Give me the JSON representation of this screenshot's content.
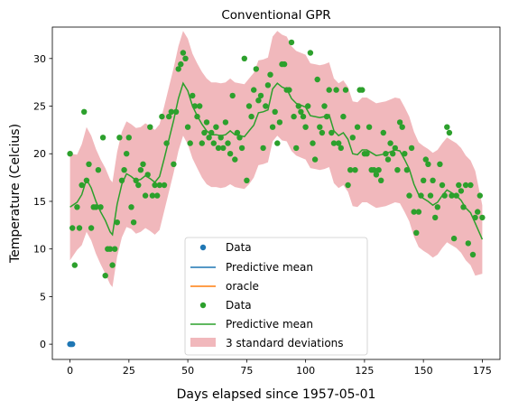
{
  "chart_data": {
    "type": "scatter",
    "title": "Conventional GPR",
    "xlabel": "Days elapsed since 1957-05-01",
    "ylabel": "Temperature (Celcius)",
    "xlim": [
      -7.5,
      182.5
    ],
    "ylim": [
      -1.6,
      33.3
    ],
    "xticks": [
      0,
      25,
      50,
      75,
      100,
      125,
      150,
      175
    ],
    "yticks": [
      0,
      5,
      10,
      15,
      20,
      25,
      30
    ],
    "grid": false,
    "legend_position": "lower-center",
    "legend": [
      {
        "label": "Data",
        "kind": "marker",
        "color": "#1f77b4"
      },
      {
        "label": "Predictive mean",
        "kind": "line",
        "color": "#1f77b4"
      },
      {
        "label": "oracle",
        "kind": "line",
        "color": "#ff7f0e"
      },
      {
        "label": "Data",
        "kind": "marker",
        "color": "#2ca02c"
      },
      {
        "label": "Predictive mean",
        "kind": "line",
        "color": "#2ca02c"
      },
      {
        "label": "3 standard deviations",
        "kind": "patch",
        "color": "#e47c80"
      }
    ],
    "colors": {
      "data_blue": "#1f77b4",
      "data_green": "#2ca02c",
      "mean_green": "#2ca02c",
      "band": "#eb9aa0"
    },
    "series": [
      {
        "name": "Data",
        "kind": "scatter",
        "color": "#1f77b4",
        "points": [
          [
            0,
            0
          ],
          [
            0.5,
            0
          ],
          [
            1,
            0
          ]
        ]
      },
      {
        "name": "Data",
        "kind": "scatter",
        "color": "#2ca02c",
        "points": [
          [
            0,
            20.0
          ],
          [
            1,
            12.2
          ],
          [
            2,
            8.3
          ],
          [
            3,
            14.4
          ],
          [
            4,
            12.2
          ],
          [
            5,
            16.7
          ],
          [
            6,
            24.4
          ],
          [
            7,
            17.2
          ],
          [
            8,
            18.9
          ],
          [
            9,
            12.2
          ],
          [
            10,
            14.4
          ],
          [
            11,
            14.4
          ],
          [
            12,
            18.3
          ],
          [
            13,
            14.4
          ],
          [
            14,
            21.7
          ],
          [
            15,
            7.2
          ],
          [
            16,
            10.0
          ],
          [
            17,
            10.0
          ],
          [
            18,
            8.3
          ],
          [
            19,
            10.0
          ],
          [
            20,
            12.8
          ],
          [
            21,
            21.7
          ],
          [
            22,
            17.2
          ],
          [
            23,
            18.3
          ],
          [
            24,
            20.0
          ],
          [
            25,
            21.7
          ],
          [
            26,
            14.4
          ],
          [
            27,
            12.8
          ],
          [
            28,
            17.2
          ],
          [
            29,
            16.7
          ],
          [
            30,
            18.3
          ],
          [
            31,
            18.9
          ],
          [
            32,
            15.6
          ],
          [
            33,
            17.8
          ],
          [
            34,
            22.8
          ],
          [
            35,
            15.6
          ],
          [
            36,
            16.7
          ],
          [
            37,
            15.6
          ],
          [
            38,
            16.7
          ],
          [
            39,
            23.9
          ],
          [
            40,
            16.7
          ],
          [
            41,
            21.1
          ],
          [
            42,
            23.9
          ],
          [
            43,
            24.4
          ],
          [
            44,
            18.9
          ],
          [
            45,
            24.4
          ],
          [
            46,
            28.9
          ],
          [
            47,
            29.4
          ],
          [
            48,
            30.6
          ],
          [
            49,
            30.0
          ],
          [
            50,
            22.8
          ],
          [
            51,
            21.1
          ],
          [
            52,
            26.1
          ],
          [
            53,
            25.0
          ],
          [
            54,
            23.9
          ],
          [
            55,
            25.0
          ],
          [
            56,
            21.1
          ],
          [
            57,
            22.2
          ],
          [
            58,
            23.3
          ],
          [
            59,
            21.7
          ],
          [
            60,
            22.2
          ],
          [
            61,
            21.1
          ],
          [
            62,
            22.8
          ],
          [
            63,
            20.6
          ],
          [
            64,
            21.7
          ],
          [
            65,
            20.6
          ],
          [
            66,
            23.3
          ],
          [
            67,
            21.1
          ],
          [
            68,
            20.0
          ],
          [
            69,
            26.1
          ],
          [
            70,
            19.4
          ],
          [
            71,
            22.2
          ],
          [
            72,
            21.7
          ],
          [
            73,
            20.6
          ],
          [
            74,
            30.0
          ],
          [
            75,
            17.2
          ],
          [
            76,
            25.0
          ],
          [
            77,
            23.9
          ],
          [
            78,
            26.7
          ],
          [
            79,
            28.9
          ],
          [
            80,
            25.6
          ],
          [
            81,
            26.1
          ],
          [
            82,
            20.6
          ],
          [
            83,
            25.0
          ],
          [
            84,
            27.2
          ],
          [
            85,
            28.3
          ],
          [
            86,
            22.8
          ],
          [
            87,
            24.4
          ],
          [
            88,
            21.1
          ],
          [
            89,
            23.3
          ],
          [
            90,
            29.4
          ],
          [
            91,
            29.4
          ],
          [
            92,
            26.7
          ],
          [
            93,
            26.7
          ],
          [
            94,
            31.7
          ],
          [
            95,
            23.9
          ],
          [
            96,
            20.6
          ],
          [
            97,
            25.0
          ],
          [
            98,
            24.4
          ],
          [
            99,
            23.9
          ],
          [
            100,
            22.8
          ],
          [
            101,
            25.0
          ],
          [
            102,
            30.6
          ],
          [
            103,
            21.1
          ],
          [
            104,
            19.4
          ],
          [
            105,
            27.8
          ],
          [
            106,
            22.8
          ],
          [
            107,
            22.2
          ],
          [
            108,
            25.0
          ],
          [
            109,
            23.9
          ],
          [
            110,
            26.7
          ],
          [
            111,
            22.2
          ],
          [
            112,
            21.1
          ],
          [
            113,
            26.7
          ],
          [
            114,
            21.1
          ],
          [
            115,
            20.6
          ],
          [
            116,
            23.9
          ],
          [
            117,
            26.7
          ],
          [
            118,
            16.7
          ],
          [
            119,
            18.3
          ],
          [
            120,
            21.7
          ],
          [
            121,
            18.3
          ],
          [
            122,
            22.8
          ],
          [
            123,
            26.7
          ],
          [
            124,
            26.7
          ],
          [
            125,
            20.0
          ],
          [
            126,
            20.0
          ],
          [
            127,
            22.8
          ],
          [
            128,
            18.3
          ],
          [
            129,
            18.3
          ],
          [
            130,
            17.8
          ],
          [
            131,
            18.3
          ],
          [
            132,
            17.2
          ],
          [
            133,
            22.2
          ],
          [
            134,
            20.0
          ],
          [
            135,
            19.4
          ],
          [
            136,
            21.1
          ],
          [
            137,
            20.0
          ],
          [
            138,
            20.6
          ],
          [
            139,
            18.3
          ],
          [
            140,
            23.3
          ],
          [
            141,
            22.8
          ],
          [
            142,
            20.0
          ],
          [
            143,
            18.3
          ],
          [
            144,
            15.6
          ],
          [
            145,
            20.6
          ],
          [
            146,
            13.9
          ],
          [
            147,
            11.7
          ],
          [
            148,
            13.9
          ],
          [
            149,
            15.6
          ],
          [
            150,
            17.2
          ],
          [
            151,
            19.4
          ],
          [
            152,
            18.9
          ],
          [
            153,
            15.6
          ],
          [
            154,
            17.2
          ],
          [
            155,
            13.3
          ],
          [
            156,
            14.4
          ],
          [
            157,
            18.9
          ],
          [
            158,
            16.7
          ],
          [
            159,
            15.6
          ],
          [
            160,
            22.8
          ],
          [
            161,
            22.2
          ],
          [
            162,
            15.6
          ],
          [
            163,
            11.1
          ],
          [
            164,
            15.6
          ],
          [
            165,
            16.7
          ],
          [
            166,
            16.1
          ],
          [
            167,
            14.4
          ],
          [
            168,
            16.7
          ],
          [
            169,
            10.6
          ],
          [
            170,
            16.7
          ],
          [
            171,
            9.4
          ],
          [
            172,
            13.3
          ],
          [
            173,
            13.9
          ],
          [
            174,
            15.6
          ],
          [
            175,
            13.3
          ]
        ]
      },
      {
        "name": "Predictive mean",
        "kind": "line",
        "color": "#2ca02c",
        "x": [
          0,
          3,
          5,
          7,
          9,
          11,
          13,
          15,
          17,
          18,
          20,
          22,
          24,
          26,
          28,
          30,
          32,
          34,
          36,
          38,
          40,
          42,
          44,
          46,
          48,
          50,
          52,
          54,
          56,
          58,
          60,
          62,
          64,
          66,
          68,
          70,
          72,
          74,
          76,
          78,
          80,
          82,
          84,
          86,
          88,
          90,
          92,
          94,
          96,
          98,
          100,
          102,
          104,
          106,
          108,
          110,
          112,
          114,
          116,
          118,
          120,
          122,
          124,
          126,
          128,
          130,
          132,
          134,
          136,
          138,
          140,
          142,
          144,
          146,
          148,
          150,
          152,
          154,
          156,
          158,
          160,
          162,
          164,
          166,
          168,
          170,
          172,
          175
        ],
        "y": [
          14.4,
          14.9,
          15.7,
          17.3,
          16.4,
          15.0,
          13.9,
          13.0,
          11.8,
          11.5,
          14.7,
          16.8,
          17.9,
          17.6,
          17.2,
          17.3,
          17.7,
          17.4,
          17.0,
          17.6,
          19.5,
          21.5,
          23.5,
          25.8,
          27.4,
          26.6,
          25.0,
          24.0,
          23.1,
          22.4,
          22.0,
          22.0,
          21.9,
          22.0,
          22.4,
          22.0,
          21.9,
          21.8,
          22.4,
          23.0,
          24.3,
          24.4,
          24.6,
          26.8,
          27.4,
          27.0,
          26.8,
          25.8,
          25.3,
          25.1,
          24.9,
          24.0,
          23.9,
          23.8,
          23.9,
          24.1,
          22.4,
          21.9,
          22.2,
          21.5,
          20.0,
          19.9,
          20.4,
          20.4,
          20.1,
          19.8,
          19.9,
          20.0,
          20.2,
          20.4,
          20.3,
          19.4,
          18.4,
          16.8,
          15.7,
          15.3,
          15.0,
          14.6,
          14.9,
          15.6,
          16.2,
          15.9,
          15.6,
          15.1,
          14.3,
          13.8,
          12.7,
          11.0
        ]
      },
      {
        "name": "3 standard deviations",
        "kind": "band",
        "color": "#eb9aa0",
        "x": [
          0,
          3,
          5,
          7,
          9,
          11,
          13,
          15,
          17,
          18,
          20,
          22,
          24,
          26,
          28,
          30,
          32,
          34,
          36,
          38,
          40,
          42,
          44,
          46,
          48,
          50,
          52,
          54,
          56,
          58,
          60,
          62,
          64,
          66,
          68,
          70,
          72,
          74,
          76,
          78,
          80,
          82,
          84,
          86,
          88,
          90,
          92,
          94,
          96,
          98,
          100,
          102,
          104,
          106,
          108,
          110,
          112,
          114,
          116,
          118,
          120,
          122,
          124,
          126,
          128,
          130,
          132,
          134,
          136,
          138,
          140,
          142,
          144,
          146,
          148,
          150,
          152,
          154,
          156,
          158,
          160,
          162,
          164,
          166,
          168,
          170,
          172,
          175
        ],
        "lower": [
          8.8,
          9.9,
          10.4,
          11.8,
          10.9,
          9.5,
          8.4,
          7.4,
          6.3,
          6.0,
          9.2,
          11.2,
          12.3,
          12.1,
          11.6,
          11.8,
          12.2,
          11.9,
          11.5,
          12.0,
          14.0,
          16.0,
          18.0,
          20.3,
          21.9,
          21.0,
          19.5,
          18.5,
          17.5,
          16.8,
          16.5,
          16.5,
          16.4,
          16.5,
          16.8,
          16.5,
          16.4,
          16.3,
          16.8,
          17.5,
          18.8,
          18.9,
          19.1,
          21.3,
          21.9,
          21.4,
          21.3,
          20.3,
          19.8,
          19.6,
          19.4,
          18.5,
          18.4,
          18.3,
          18.4,
          18.6,
          16.9,
          16.4,
          16.7,
          16.0,
          14.5,
          14.4,
          14.9,
          14.9,
          14.6,
          14.3,
          14.4,
          14.5,
          14.7,
          14.9,
          14.8,
          13.9,
          12.9,
          11.3,
          10.2,
          9.8,
          9.5,
          9.1,
          9.4,
          10.1,
          10.7,
          10.4,
          10.1,
          9.6,
          8.8,
          8.3,
          7.2,
          7.4
        ],
        "upper": [
          20.0,
          19.9,
          21.0,
          22.8,
          21.9,
          20.5,
          19.4,
          18.5,
          17.3,
          17.0,
          20.2,
          22.3,
          23.4,
          23.1,
          22.7,
          22.8,
          23.2,
          22.9,
          22.5,
          23.1,
          25.0,
          27.0,
          29.0,
          31.3,
          32.9,
          32.1,
          30.5,
          29.5,
          28.6,
          27.9,
          27.5,
          27.5,
          27.4,
          27.5,
          27.9,
          27.5,
          27.4,
          27.3,
          27.9,
          28.5,
          29.8,
          29.9,
          30.1,
          32.3,
          32.9,
          32.5,
          32.3,
          31.3,
          30.8,
          30.6,
          30.4,
          29.5,
          29.4,
          29.3,
          29.4,
          29.6,
          27.9,
          27.4,
          27.7,
          27.0,
          25.5,
          25.4,
          25.9,
          25.9,
          25.6,
          25.3,
          25.4,
          25.5,
          25.7,
          25.9,
          25.8,
          24.9,
          23.9,
          22.3,
          21.2,
          20.8,
          20.5,
          20.1,
          20.4,
          21.1,
          21.7,
          21.4,
          21.1,
          20.6,
          19.8,
          19.3,
          18.2,
          14.6
        ]
      }
    ]
  }
}
